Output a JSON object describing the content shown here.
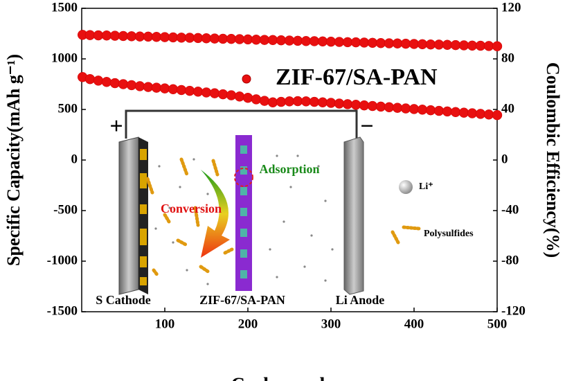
{
  "chart_data": {
    "type": "scatter",
    "x_label": "Cycle number",
    "y_label": "Specific Capacity(mAh g⁻¹)",
    "y2_label": "Coulombic Efficiency(%)",
    "annotations": [
      "+",
      "−",
      "Adsorption",
      "Conversion",
      "Li⁺",
      "Polysulfides",
      "S Cathode",
      "ZIF-67/SA-PAN",
      "Li Anode"
    ],
    "x": [
      1,
      10,
      20,
      30,
      40,
      50,
      60,
      70,
      80,
      90,
      100,
      110,
      120,
      130,
      140,
      150,
      160,
      170,
      180,
      190,
      200,
      210,
      220,
      230,
      240,
      250,
      260,
      270,
      280,
      290,
      300,
      310,
      320,
      330,
      340,
      350,
      360,
      370,
      380,
      390,
      400,
      410,
      420,
      430,
      440,
      450,
      460,
      470,
      480,
      490,
      500
    ],
    "series": [
      {
        "name": "ZIF-67/SA-PAN",
        "color": "#e81010",
        "values": [
          820,
          800,
          785,
          772,
          760,
          750,
          740,
          730,
          722,
          715,
          708,
          700,
          692,
          684,
          676,
          668,
          660,
          650,
          640,
          628,
          615,
          600,
          585,
          570,
          575,
          580,
          582,
          580,
          575,
          570,
          565,
          558,
          552,
          546,
          540,
          534,
          528,
          522,
          516,
          510,
          504,
          498,
          492,
          486,
          480,
          474,
          468,
          462,
          456,
          450,
          444
        ]
      },
      {
        "color": "#e81010",
        "axis": "y2",
        "values": [
          99.0,
          98.8,
          98.6,
          98.5,
          98.3,
          98.1,
          97.9,
          97.7,
          97.6,
          97.4,
          97.2,
          97.0,
          96.8,
          96.7,
          96.5,
          96.3,
          96.1,
          95.9,
          95.8,
          95.6,
          95.4,
          95.2,
          95.0,
          94.9,
          94.7,
          94.5,
          94.3,
          94.1,
          94.0,
          93.8,
          93.6,
          93.4,
          93.2,
          93.1,
          92.9,
          92.7,
          92.5,
          92.3,
          92.2,
          92.0,
          91.8,
          91.6,
          91.4,
          91.3,
          91.1,
          90.9,
          90.7,
          90.5,
          90.4,
          90.2,
          90.0
        ]
      }
    ],
    "xlim": [
      0,
      500
    ],
    "xticks": [
      100,
      200,
      300,
      400,
      500
    ],
    "ylim": [
      -1500,
      1500
    ],
    "yticks": [
      1500,
      1000,
      500,
      0,
      -500,
      -1000,
      -1500
    ],
    "y2lim": [
      -120,
      120
    ],
    "y2ticks": [
      120,
      80,
      40,
      0,
      -40,
      -80,
      -120
    ]
  }
}
